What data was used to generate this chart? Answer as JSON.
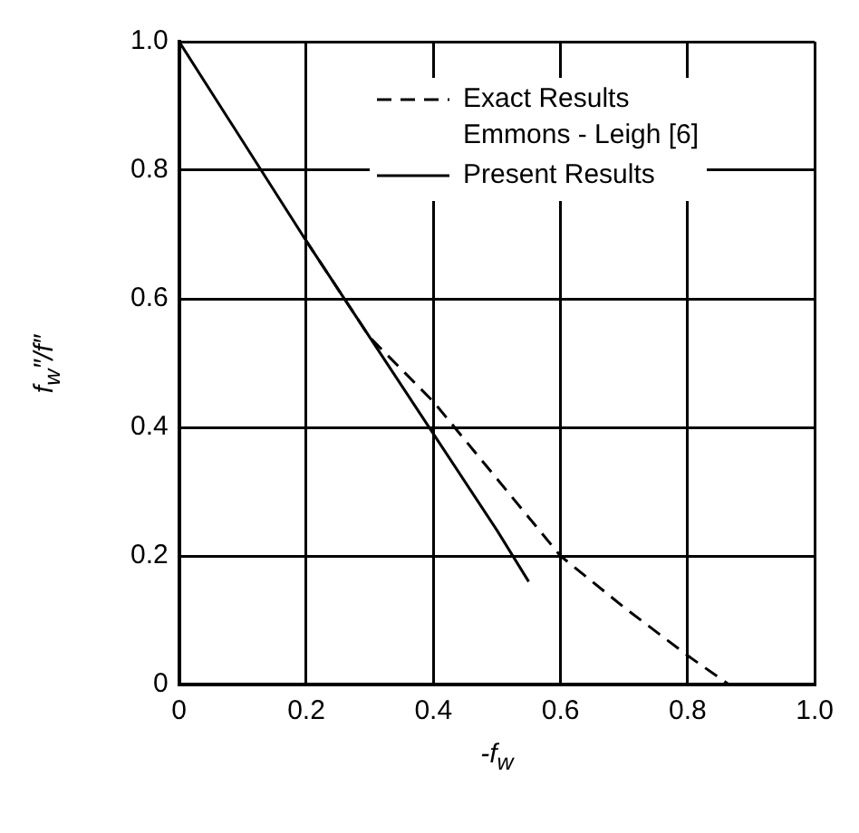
{
  "chart_data": {
    "type": "line",
    "xlabel": "-f$_{w}$",
    "ylabel": "f$_{w}$″/f″",
    "series": [
      {
        "name": "Exact Results\nEmmons - Leigh [6]",
        "color": "#000000",
        "line_style": "dashed",
        "x": [
          0.2,
          0.25,
          0.3,
          0.4,
          0.5,
          0.6,
          0.7,
          0.8,
          0.865
        ],
        "values": [
          0.69,
          0.615,
          0.54,
          0.44,
          0.32,
          0.2,
          0.12,
          0.045,
          0
        ]
      },
      {
        "name": "Present Results",
        "color": "#000000",
        "line_style": "solid",
        "x": [
          0,
          0.1,
          0.2,
          0.3,
          0.4,
          0.5,
          0.55
        ],
        "values": [
          1,
          0.845,
          0.69,
          0.54,
          0.39,
          0.24,
          0.16
        ]
      }
    ],
    "xlim": [
      0,
      1
    ],
    "ylim": [
      0,
      1
    ],
    "xticks": [
      0,
      0.2,
      0.4,
      0.6,
      0.8,
      {
        "value": 1,
        "label": "1.0"
      }
    ],
    "yticks": [
      0,
      0.2,
      0.4,
      0.6,
      0.8,
      {
        "value": 1,
        "label": "1.0"
      }
    ],
    "grid": true,
    "legend": "top right",
    "marker": "none"
  }
}
